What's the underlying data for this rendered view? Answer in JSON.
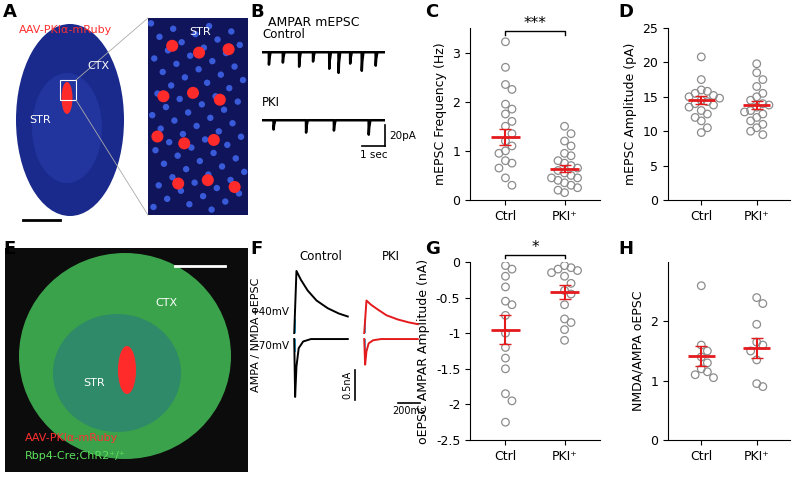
{
  "chart_data": [
    {
      "type": "scatter",
      "panel": "C",
      "y_label": "mEPSC Frequency (Hz)",
      "categories": [
        "Ctrl",
        "PKI⁺"
      ],
      "values": [
        [
          3.22,
          2.7,
          2.35,
          2.25,
          1.95,
          1.85,
          1.75,
          1.6,
          1.5,
          1.35,
          1.2,
          1.1,
          1.0,
          0.95,
          0.8,
          0.75,
          0.65,
          0.45,
          0.3
        ],
        [
          1.5,
          1.35,
          1.2,
          1.1,
          0.95,
          0.9,
          0.8,
          0.75,
          0.7,
          0.65,
          0.6,
          0.55,
          0.5,
          0.45,
          0.45,
          0.4,
          0.35,
          0.3,
          0.25,
          0.2,
          0.15
        ]
      ],
      "summary": {
        "mean": [
          1.28,
          0.64
        ],
        "sem": [
          0.17,
          0.08
        ],
        "color": "#e41a1c"
      },
      "color": "#8c8c8c",
      "ylim": [
        0,
        3.5
      ],
      "yticks": [
        0,
        1,
        2,
        3
      ],
      "significance": "***"
    },
    {
      "type": "scatter",
      "panel": "D",
      "y_label": "mEPSC Amplitude (pA)",
      "categories": [
        "Ctrl",
        "PKI⁺"
      ],
      "values": [
        [
          20.8,
          17.5,
          16,
          15.8,
          15.5,
          15.2,
          15,
          14.8,
          14.5,
          14.3,
          14,
          13.8,
          13.5,
          13,
          12.5,
          12,
          11.5,
          10.5,
          9.8
        ],
        [
          19.8,
          18.5,
          17.5,
          16.5,
          15.5,
          15,
          14.5,
          14,
          13.8,
          13.5,
          13,
          12.8,
          12.5,
          12,
          11.5,
          11,
          10.5,
          10,
          9.5
        ]
      ],
      "summary": {
        "mean": [
          14.5,
          13.8
        ],
        "sem": [
          0.6,
          0.6
        ],
        "color": "#e41a1c"
      },
      "color": "#8c8c8c",
      "ylim": [
        0,
        25
      ],
      "yticks": [
        0,
        5,
        10,
        15,
        20,
        25
      ]
    },
    {
      "type": "scatter",
      "panel": "G",
      "y_label": "oEPSC AMPAR Amplitude (nA)",
      "categories": [
        "Ctrl",
        "PKI⁺"
      ],
      "values": [
        [
          -0.05,
          -0.1,
          -0.2,
          -0.35,
          -0.55,
          -0.6,
          -0.75,
          -1.0,
          -1.2,
          -1.35,
          -1.5,
          -1.85,
          -1.95,
          -2.25
        ],
        [
          -0.05,
          -0.08,
          -0.1,
          -0.12,
          -0.15,
          -0.2,
          -0.3,
          -0.4,
          -0.45,
          -0.6,
          -0.8,
          -0.85,
          -0.95,
          -1.1
        ]
      ],
      "summary": {
        "mean": [
          -0.95,
          -0.42
        ],
        "sem": [
          0.2,
          0.1
        ],
        "color": "#e41a1c"
      },
      "color": "#8c8c8c",
      "ylim": [
        -2.5,
        0
      ],
      "yticks": [
        0,
        -0.5,
        -1,
        -1.5,
        -2,
        -2.5
      ],
      "significance": "*"
    },
    {
      "type": "scatter",
      "panel": "H",
      "y_label": "NMDA/AMPA oEPSC",
      "categories": [
        "Ctrl",
        "PKI⁺"
      ],
      "values": [
        [
          2.6,
          1.6,
          1.5,
          1.4,
          1.3,
          1.2,
          1.15,
          1.1,
          1.05
        ],
        [
          2.4,
          2.3,
          1.95,
          1.65,
          1.6,
          1.5,
          1.35,
          0.95,
          0.9
        ]
      ],
      "summary": {
        "mean": [
          1.42,
          1.55
        ],
        "sem": [
          0.17,
          0.17
        ],
        "color": "#e41a1c"
      },
      "color": "#8c8c8c",
      "ylim": [
        0,
        3
      ],
      "yticks": [
        0,
        1,
        2
      ]
    }
  ],
  "panels": [
    {
      "letter": "A",
      "virus": "AAV-PKIα-mRuby",
      "regions": [
        "CTX",
        "STR"
      ],
      "inset_region": "STR"
    },
    {
      "letter": "B",
      "title": "AMPAR mEPSC",
      "xlim": [
        0,
        5.3
      ],
      "ylim": [
        -25,
        8
      ],
      "traces": [
        {
          "name": "Control",
          "color": "#000000",
          "events": [
            [
              0.3,
              -12
            ],
            [
              0.9,
              -10
            ],
            [
              1.6,
              -14
            ],
            [
              2.2,
              -9
            ],
            [
              2.9,
              -16
            ],
            [
              3.3,
              -20
            ],
            [
              3.8,
              -11
            ],
            [
              4.3,
              -18
            ],
            [
              4.9,
              -13
            ]
          ]
        },
        {
          "name": "PKI",
          "color": "#000000",
          "events": [
            [
              0.5,
              -9
            ],
            [
              1.9,
              -12
            ],
            [
              3.1,
              -10
            ],
            [
              4.6,
              -14
            ]
          ]
        }
      ],
      "scalebar": {
        "x": 1,
        "x_label": "1 sec",
        "y": 20,
        "y_label": "20pA"
      }
    },
    {
      "letter": "E",
      "virus": "AAV-PKIα-mRuby",
      "line": "Rbp4-Cre;ChR2⁺/⁺",
      "regions": [
        "CTX",
        "STR"
      ]
    },
    {
      "letter": "F",
      "y_label": "AMPA / NMDA oEPSC",
      "xlim": [
        -20,
        500
      ],
      "holding": [
        {
          "label": "+40mV",
          "ylim": [
            -0.05,
            1.1
          ]
        },
        {
          "label": "-70mV",
          "ylim": [
            -1.0,
            0.05
          ]
        }
      ],
      "traces": [
        {
          "name": "Control",
          "color": "#000000",
          "sweeps": [
            [
              [
                0,
                0
              ],
              [
                20,
                1.05
              ],
              [
                60,
                0.9
              ],
              [
                120,
                0.72
              ],
              [
                200,
                0.55
              ],
              [
                300,
                0.42
              ],
              [
                400,
                0.33
              ],
              [
                480,
                0.28
              ]
            ],
            [
              [
                0,
                0
              ],
              [
                8,
                -0.95
              ],
              [
                20,
                -0.45
              ],
              [
                40,
                -0.15
              ],
              [
                80,
                -0.04
              ],
              [
                150,
                0
              ],
              [
                480,
                0
              ]
            ]
          ]
        },
        {
          "name": "PKI",
          "color": "#e41a1c",
          "sweeps": [
            [
              [
                0,
                0
              ],
              [
                20,
                0.55
              ],
              [
                60,
                0.48
              ],
              [
                120,
                0.4
              ],
              [
                200,
                0.3
              ],
              [
                300,
                0.23
              ],
              [
                400,
                0.18
              ],
              [
                480,
                0.15
              ]
            ],
            [
              [
                0,
                0
              ],
              [
                8,
                -0.42
              ],
              [
                20,
                -0.2
              ],
              [
                40,
                -0.07
              ],
              [
                80,
                -0.02
              ],
              [
                150,
                0
              ],
              [
                480,
                0
              ]
            ]
          ]
        }
      ],
      "scalebar": {
        "x": 200,
        "x_label": "200ms",
        "y": 0.5,
        "y_label": "0.5nA"
      }
    }
  ]
}
